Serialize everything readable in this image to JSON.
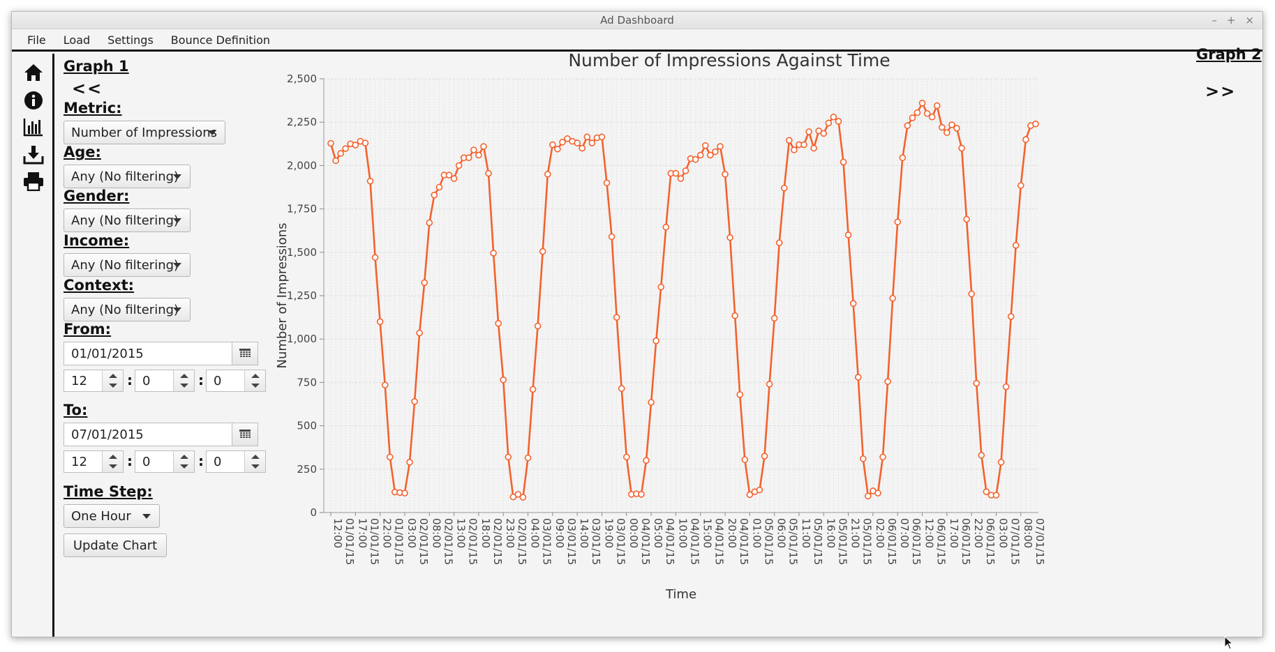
{
  "window": {
    "title": "Ad Dashboard",
    "controls": [
      "–",
      "+",
      "×"
    ]
  },
  "menu": [
    "File",
    "Load",
    "Settings",
    "Bounce Definition"
  ],
  "iconbar": [
    "home-icon",
    "info-icon",
    "bar-chart-icon",
    "download-icon",
    "print-icon"
  ],
  "graph1": {
    "title": "Graph 1",
    "prev": "<<"
  },
  "graph2": {
    "title": "Graph 2",
    "next": ">>"
  },
  "filters": {
    "metric_label": "Metric:",
    "metric": "Number of Impressions",
    "age_label": "Age:",
    "age": "Any (No filtering)",
    "gender_label": "Gender:",
    "gender": "Any (No filtering)",
    "income_label": "Income:",
    "income": "Any (No filtering)",
    "context_label": "Context:",
    "context": "Any (No filtering)",
    "from_label": "From:",
    "from_date": "01/01/2015",
    "from_h": "12",
    "from_m": "0",
    "from_s": "0",
    "to_label": "To:",
    "to_date": "07/01/2015",
    "to_h": "12",
    "to_m": "0",
    "to_s": "0",
    "timestep_label": "Time Step:",
    "timestep": "One Hour",
    "update_label": "Update Chart"
  },
  "chart_data": {
    "type": "line",
    "title": "Number of Impressions Against Time",
    "xlabel": "Time",
    "ylabel": "Number of Impressions",
    "ylim": [
      0,
      2500
    ],
    "yticks": [
      "0",
      "250",
      "500",
      "750",
      "1,000",
      "1,250",
      "1,500",
      "1,750",
      "2,000",
      "2,250",
      "2,500"
    ],
    "xtick_labels": [
      "12:00 01/01/15",
      "17:00 01/01/15",
      "22:00 01/01/15",
      "03:00 02/01/15",
      "08:00 02/01/15",
      "13:00 02/01/15",
      "18:00 02/01/15",
      "23:00 02/01/15",
      "04:00 03/01/15",
      "09:00 03/01/15",
      "14:00 03/01/15",
      "19:00 03/01/15",
      "00:00 04/01/15",
      "05:00 04/01/15",
      "10:00 04/01/15",
      "15:00 04/01/15",
      "20:00 04/01/15",
      "01:00 05/01/15",
      "06:00 05/01/15",
      "11:00 05/01/15",
      "16:00 05/01/15",
      "21:00 05/01/15",
      "02:00 06/01/15",
      "07:00 06/01/15",
      "12:00 06/01/15",
      "17:00 06/01/15",
      "22:00 06/01/15",
      "03:00 07/01/15",
      "08:00 07/01/15"
    ],
    "color": "#f3622d",
    "grid": true,
    "series": [
      {
        "values": [
          2128,
          2028,
          2070,
          2098,
          2125,
          2118,
          2140,
          2130,
          1910,
          1470,
          1100,
          735,
          320,
          118,
          115,
          112,
          290,
          640,
          1035,
          1325,
          1670,
          1830,
          1875,
          1945,
          1945,
          1925,
          2000,
          2045,
          2045,
          2090,
          2060,
          2110,
          1955,
          1495,
          1090,
          765,
          320,
          90,
          105,
          88,
          315,
          710,
          1075,
          1505,
          1950,
          2120,
          2095,
          2135,
          2155,
          2140,
          2130,
          2100,
          2165,
          2130,
          2160,
          2165,
          1900,
          1590,
          1125,
          715,
          320,
          105,
          108,
          105,
          300,
          635,
          990,
          1300,
          1645,
          1955,
          1955,
          1925,
          1970,
          2040,
          2035,
          2060,
          2115,
          2060,
          2080,
          2110,
          1950,
          1585,
          1135,
          680,
          305,
          103,
          120,
          130,
          325,
          740,
          1120,
          1555,
          1870,
          2145,
          2090,
          2120,
          2120,
          2195,
          2100,
          2200,
          2185,
          2245,
          2280,
          2255,
          2020,
          1600,
          1205,
          780,
          310,
          95,
          125,
          112,
          320,
          755,
          1235,
          1675,
          2045,
          2230,
          2275,
          2305,
          2360,
          2300,
          2280,
          2345,
          2220,
          2190,
          2235,
          2215,
          2100,
          1690,
          1260,
          745,
          330,
          120,
          100,
          100,
          290,
          725,
          1130,
          1540,
          1885,
          2150,
          2230,
          2240
        ]
      }
    ]
  }
}
